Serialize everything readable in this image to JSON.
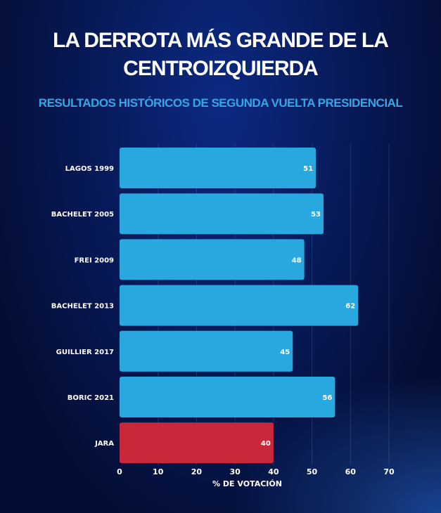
{
  "chart_data": {
    "type": "bar",
    "orientation": "horizontal",
    "title": "LA DERROTA MÁS GRANDE DE LA CENTROIZQUIERDA",
    "subtitle": "RESULTADOS HISTÓRICOS DE SEGUNDA VUELTA PRESIDENCIAL",
    "categories": [
      "LAGOS 1999",
      "BACHELET 2005",
      "FREI 2009",
      "BACHELET 2013",
      "GUILLIER 2017",
      "BORIC 2021",
      "JARA"
    ],
    "values": [
      51,
      53,
      48,
      62,
      45,
      56,
      40
    ],
    "bar_colors": [
      "#29a8e0",
      "#29a8e0",
      "#29a8e0",
      "#29a8e0",
      "#29a8e0",
      "#29a8e0",
      "#c8283a"
    ],
    "xlabel": "% DE VOTACIÓN",
    "ylabel": "",
    "xlim": [
      0,
      70
    ],
    "xticks": [
      0,
      10,
      20,
      30,
      40,
      50,
      60,
      70
    ],
    "grid": true,
    "data_labels": true
  }
}
